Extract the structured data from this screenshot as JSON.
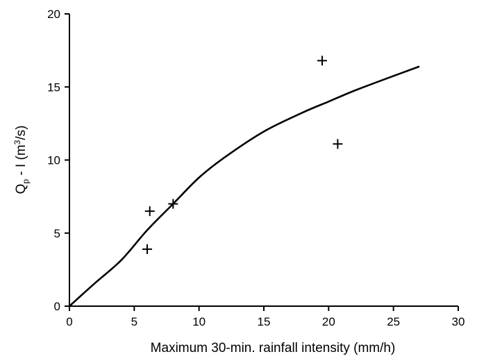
{
  "chart_data": {
    "type": "scatter",
    "xlabel": "Maximum 30-min. rainfall intensity (mm/h)",
    "ylabel": {
      "q": "Q",
      "q_sub": "p",
      "mid": " - I (m",
      "sup": "3",
      "tail": "/s)"
    },
    "xlim": [
      0,
      30
    ],
    "ylim": [
      0,
      20
    ],
    "xticks": [
      "0",
      "5",
      "10",
      "15",
      "20",
      "25",
      "30"
    ],
    "yticks": [
      "0",
      "5",
      "10",
      "15",
      "20"
    ],
    "grid": false,
    "series": [
      {
        "type": "scatter",
        "marker": "+",
        "points": [
          {
            "x": 6.0,
            "y": 3.9
          },
          {
            "x": 6.2,
            "y": 6.5
          },
          {
            "x": 8.0,
            "y": 7.0
          },
          {
            "x": 19.5,
            "y": 16.8
          },
          {
            "x": 20.7,
            "y": 11.1
          }
        ]
      },
      {
        "type": "line",
        "points": [
          {
            "x": 0,
            "y": 0
          },
          {
            "x": 2,
            "y": 1.6
          },
          {
            "x": 4,
            "y": 3.15
          },
          {
            "x": 6,
            "y": 5.2
          },
          {
            "x": 8,
            "y": 7.0
          },
          {
            "x": 10,
            "y": 8.8
          },
          {
            "x": 12,
            "y": 10.2
          },
          {
            "x": 15,
            "y": 11.95
          },
          {
            "x": 18,
            "y": 13.25
          },
          {
            "x": 20,
            "y": 14.0
          },
          {
            "x": 22,
            "y": 14.75
          },
          {
            "x": 25,
            "y": 15.75
          },
          {
            "x": 27,
            "y": 16.4
          }
        ]
      }
    ]
  }
}
